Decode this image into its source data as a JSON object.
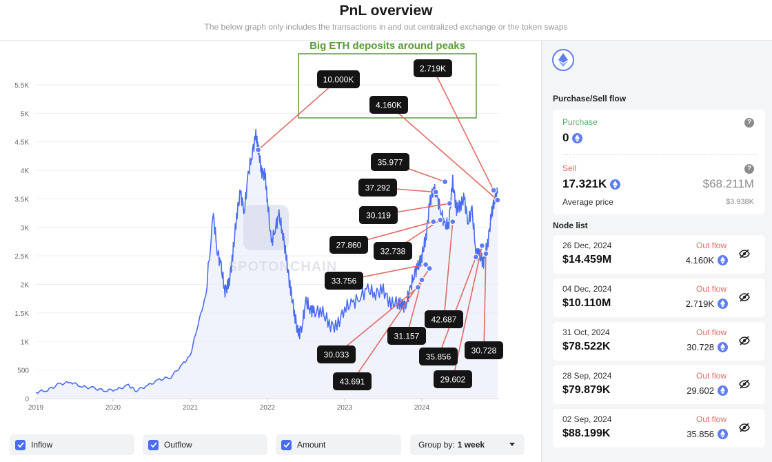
{
  "header": {
    "title": "PnL overview",
    "subtitle": "The below graph only includes the transactions in and out centralized exchange or the token swaps"
  },
  "chart_data": {
    "type": "area",
    "annotation_box_label": "Big ETH deposits around peaks",
    "watermark": "SPOTONCHAIN",
    "y_ticks": [
      "0",
      "500",
      "1K",
      "1.5K",
      "2K",
      "2.5K",
      "3K",
      "3.5K",
      "4K",
      "4.5K",
      "5K",
      "5.5K"
    ],
    "x_ticks": [
      "2019",
      "2020",
      "2021",
      "2022",
      "2023",
      "2024"
    ],
    "ylim": [
      0,
      5500
    ],
    "xlim": [
      2019.0,
      2025.0
    ],
    "x": [
      2019.0,
      2019.15,
      2019.3,
      2019.45,
      2019.6,
      2019.75,
      2019.9,
      2020.05,
      2020.2,
      2020.3,
      2020.45,
      2020.6,
      2020.75,
      2020.9,
      2021.0,
      2021.1,
      2021.2,
      2021.3,
      2021.35,
      2021.4,
      2021.45,
      2021.5,
      2021.55,
      2021.6,
      2021.65,
      2021.7,
      2021.75,
      2021.8,
      2021.85,
      2021.88,
      2021.92,
      2021.97,
      2022.0,
      2022.05,
      2022.1,
      2022.15,
      2022.2,
      2022.25,
      2022.3,
      2022.35,
      2022.4,
      2022.45,
      2022.5,
      2022.55,
      2022.6,
      2022.7,
      2022.8,
      2022.9,
      2023.0,
      2023.1,
      2023.2,
      2023.3,
      2023.4,
      2023.5,
      2023.6,
      2023.7,
      2023.75,
      2023.8,
      2023.85,
      2023.9,
      2023.95,
      2024.0,
      2024.05,
      2024.1,
      2024.15,
      2024.2,
      2024.25,
      2024.3,
      2024.35,
      2024.4,
      2024.45,
      2024.5,
      2024.55,
      2024.6,
      2024.65,
      2024.7,
      2024.75,
      2024.8,
      2024.85,
      2024.9,
      2024.94,
      2024.98
    ],
    "values": [
      110,
      150,
      250,
      290,
      210,
      180,
      140,
      160,
      230,
      140,
      230,
      330,
      380,
      600,
      750,
      1300,
      1800,
      3200,
      2600,
      2300,
      1900,
      2000,
      2500,
      3200,
      3600,
      3300,
      3900,
      4300,
      4600,
      4400,
      4000,
      3900,
      3500,
      2700,
      3000,
      3200,
      2900,
      2400,
      1900,
      1500,
      1100,
      1300,
      1700,
      1600,
      1500,
      1550,
      1300,
      1250,
      1600,
      1650,
      1800,
      1900,
      1850,
      1900,
      1650,
      1700,
      1600,
      1700,
      1900,
      2200,
      2300,
      2500,
      2800,
      3400,
      3700,
      3500,
      3300,
      3000,
      3100,
      3800,
      3300,
      3400,
      3500,
      3100,
      3300,
      2600,
      2500,
      2400,
      2700,
      3200,
      3500,
      3600
    ],
    "markers": [
      {
        "label": "10.000K",
        "x": 2021.88,
        "y": 4360
      },
      {
        "label": "4.160K",
        "x": 2024.98,
        "y": 3480
      },
      {
        "label": "2.719K",
        "x": 2024.93,
        "y": 3650
      },
      {
        "label": "35.977",
        "x": 2024.3,
        "y": 3800
      },
      {
        "label": "37.292",
        "x": 2024.18,
        "y": 3620
      },
      {
        "label": "30.119",
        "x": 2024.36,
        "y": 3420
      },
      {
        "label": "27.860",
        "x": 2024.15,
        "y": 3100
      },
      {
        "label": "32.738",
        "x": 2024.24,
        "y": 3130
      },
      {
        "label": "33.756",
        "x": 2024.05,
        "y": 2350
      },
      {
        "label": "30.033",
        "x": 2023.95,
        "y": 1950
      },
      {
        "label": "43.691",
        "x": 2024.1,
        "y": 2280
      },
      {
        "label": "31.157",
        "x": 2024.0,
        "y": 2080
      },
      {
        "label": "42.687",
        "x": 2024.4,
        "y": 3100
      },
      {
        "label": "35.856",
        "x": 2024.7,
        "y": 2480
      },
      {
        "label": "29.602",
        "x": 2024.78,
        "y": 2680
      },
      {
        "label": "30.728",
        "x": 2024.83,
        "y": 2540
      }
    ]
  },
  "controls": {
    "inflow": "Inflow",
    "outflow": "Outflow",
    "amount": "Amount",
    "group_by_label": "Group by:",
    "group_by_value": "1 week"
  },
  "sidebar": {
    "flow_title": "Purchase/Sell flow",
    "purchase_label": "Purchase",
    "purchase_value": "0",
    "sell_label": "Sell",
    "sell_value": "17.321K",
    "sell_usd": "$68.211M",
    "avg_price_label": "Average price",
    "avg_price_value": "$3.938K",
    "node_title": "Node list",
    "nodes": [
      {
        "date": "26 Dec, 2024",
        "usd": "$14.459M",
        "flow": "Out flow",
        "amount": "4.160K"
      },
      {
        "date": "04 Dec, 2024",
        "usd": "$10.110M",
        "flow": "Out flow",
        "amount": "2.719K"
      },
      {
        "date": "31 Oct, 2024",
        "usd": "$78.522K",
        "flow": "Out flow",
        "amount": "30.728"
      },
      {
        "date": "28 Sep, 2024",
        "usd": "$79.879K",
        "flow": "Out flow",
        "amount": "29.602"
      },
      {
        "date": "02 Sep, 2024",
        "usd": "$88.199K",
        "flow": "Out flow",
        "amount": "35.856"
      }
    ]
  },
  "colors": {
    "line": "#4a6cf0",
    "annotation_green": "#5a9a3c",
    "connector": "#e06a63",
    "out_flow": "#e06a63"
  }
}
